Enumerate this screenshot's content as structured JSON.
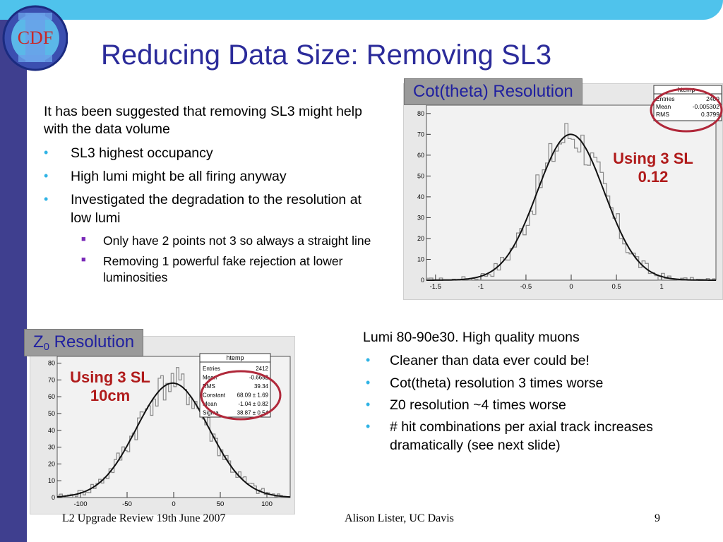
{
  "title": "Reducing Data Size: Removing SL3",
  "logo": {
    "text": "CDF"
  },
  "left_bullets": {
    "lead": "It has been suggested that removing SL3 might help with the data volume",
    "items": [
      "SL3 highest occupancy",
      "High lumi might be all firing anyway",
      "Investigated the degradation to the resolution at low lumi"
    ],
    "sub_items": [
      "Only have 2 points not 3 so always a straight line",
      "Removing 1 powerful fake rejection at lower luminosities"
    ]
  },
  "plot_top": {
    "label": "Cot(theta) Resolution",
    "annotation_line1": "Using 3 SL",
    "annotation_line2": "0.12",
    "stats_title": "htemp",
    "stats": [
      {
        "k": "Entries",
        "v": "2409"
      },
      {
        "k": "Mean",
        "v": "-0.005302"
      },
      {
        "k": "RMS",
        "v": "0.3799"
      }
    ],
    "y_ticks": [
      "0",
      "10",
      "20",
      "30",
      "40",
      "50",
      "60",
      "70",
      "80"
    ],
    "x_ticks": [
      "-1.5",
      "-1",
      "-0.5",
      "0",
      "0.5",
      "1"
    ]
  },
  "plot_bottom": {
    "label_main": "Z",
    "label_sub": "0",
    "label_rest": " Resolution",
    "annotation_line1": "Using 3 SL",
    "annotation_line2": "10cm",
    "stats_title": "htemp",
    "stats": [
      {
        "k": "Entries",
        "v": "2412"
      },
      {
        "k": "Mean",
        "v": "-0.6652"
      },
      {
        "k": "RMS",
        "v": "39.34"
      },
      {
        "k": "Constant",
        "v": "68.09 ± 1.69"
      },
      {
        "k": "Mean",
        "v": "-1.04 ± 0.82"
      },
      {
        "k": "Sigma",
        "v": "38.87 ± 0.54"
      }
    ],
    "y_ticks": [
      "0",
      "10",
      "20",
      "30",
      "40",
      "50",
      "60",
      "70",
      "80"
    ],
    "x_ticks": [
      "-100",
      "-50",
      "0",
      "50",
      "100"
    ]
  },
  "right_text": {
    "lead": "Lumi 80-90e30. High quality muons",
    "items": [
      "Cleaner than data ever could be!",
      "Cot(theta) resolution 3 times worse",
      "Z0 resolution ~4 times worse",
      "# hit combinations per axial track increases dramatically (see next slide)"
    ]
  },
  "footer": {
    "left": "L2  Upgrade Review 19th June 2007",
    "center": "Alison Lister, UC Davis",
    "page": "9"
  },
  "colors": {
    "title": "#2b2b9a",
    "accent_bar": "#4fc3ec",
    "side_bar": "#3f3f8f",
    "annotation": "#b01b1b",
    "ellipse": "#b0283a"
  }
}
